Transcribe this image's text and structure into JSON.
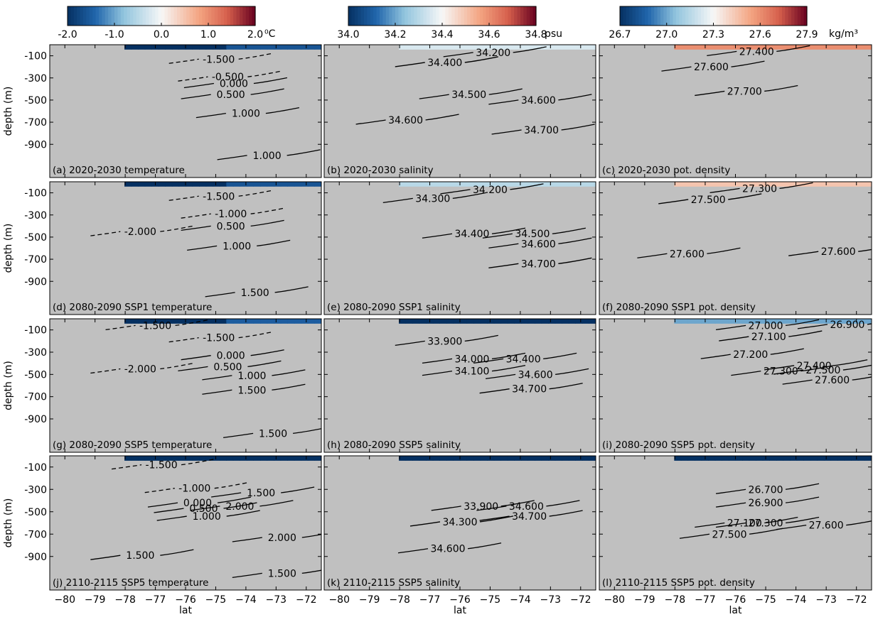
{
  "chart_data": {
    "type": "heatmap",
    "layout": {
      "rows": 4,
      "cols": 3
    },
    "x_axis": {
      "label": "lat",
      "range": [
        -80.5,
        -71.5
      ],
      "ticks": [
        -80,
        -79,
        -78,
        -77,
        -76,
        -75,
        -74,
        -73,
        -72
      ]
    },
    "y_axis": {
      "label": "depth (m)",
      "range": [
        -1200,
        0
      ],
      "ticks": [
        -100,
        -300,
        -500,
        -700,
        -900
      ]
    },
    "colorbars": [
      {
        "variable": "temperature",
        "unit": "⁰C",
        "range": [
          -2.0,
          2.0
        ],
        "ticks": [
          "-2.0",
          "-1.0",
          "0.0",
          "1.0",
          "2.0"
        ]
      },
      {
        "variable": "salinity",
        "unit": "psu",
        "range": [
          34.0,
          34.8
        ],
        "ticks": [
          "34.0",
          "34.2",
          "34.4",
          "34.6",
          "34.8"
        ]
      },
      {
        "variable": "pot. density",
        "unit": "kg/m³",
        "range": [
          26.7,
          27.9
        ],
        "ticks": [
          "26.7",
          "27.0",
          "27.3",
          "27.6",
          "27.9"
        ]
      }
    ],
    "panels": [
      {
        "label": "(a) 2020-2030   temperature",
        "var": 0,
        "shelf": -2.0,
        "off": 0.8,
        "thr": -540,
        "cmv": -1.6,
        "cmw": 80,
        "contours": [
          {
            "v": "-1.500",
            "lat": -74.9,
            "d": -130
          },
          {
            "v": "-0.500",
            "lat": -74.6,
            "d": -290
          },
          {
            "v": "0.000",
            "lat": -74.4,
            "d": -350
          },
          {
            "v": "0.500",
            "lat": -74.5,
            "d": -450
          },
          {
            "v": "1.000",
            "lat": -74.0,
            "d": -620
          },
          {
            "v": "1.000",
            "lat": -73.3,
            "d": -1000
          }
        ]
      },
      {
        "label": "(b) 2020-2030   salinity",
        "var": 1,
        "shelf": 34.62,
        "off": 34.7,
        "thr": -450,
        "cmv": 34.35,
        "cmw": 80,
        "contours": [
          {
            "v": "34.400",
            "lat": -76.5,
            "d": -160
          },
          {
            "v": "34.200",
            "lat": -74.9,
            "d": -70
          },
          {
            "v": "34.500",
            "lat": -75.7,
            "d": -450
          },
          {
            "v": "34.600",
            "lat": -77.8,
            "d": -680
          },
          {
            "v": "34.600",
            "lat": -73.4,
            "d": -500
          },
          {
            "v": "34.700",
            "lat": -73.3,
            "d": -770
          }
        ]
      },
      {
        "label": "(c) 2020-2030   pot. density",
        "var": 2,
        "shelf": 27.78,
        "off": 27.8,
        "thr": -300,
        "cmv": 27.6,
        "cmw": 60,
        "contours": [
          {
            "v": "27.600",
            "lat": -76.8,
            "d": -200
          },
          {
            "v": "27.400",
            "lat": -75.3,
            "d": -60
          },
          {
            "v": "27.700",
            "lat": -75.7,
            "d": -420
          }
        ]
      },
      {
        "label": "(d) 2080-2090 SSP1 temperature",
        "var": 0,
        "shelf": -2.0,
        "off": 1.4,
        "thr": -540,
        "cmv": -1.6,
        "cmw": 80,
        "contours": [
          {
            "v": "-2.000",
            "lat": -77.5,
            "d": -450
          },
          {
            "v": "-1.500",
            "lat": -74.9,
            "d": -130
          },
          {
            "v": "-1.000",
            "lat": -74.5,
            "d": -290
          },
          {
            "v": "0.500",
            "lat": -74.5,
            "d": -400
          },
          {
            "v": "1.000",
            "lat": -74.3,
            "d": -580
          },
          {
            "v": "1.500",
            "lat": -73.7,
            "d": -1000
          }
        ]
      },
      {
        "label": "(e) 2080-2090 SSP1 salinity",
        "var": 1,
        "shelf": 34.42,
        "off": 34.7,
        "thr": -420,
        "cmv": 34.3,
        "cmw": 70,
        "contours": [
          {
            "v": "34.300",
            "lat": -76.9,
            "d": -150
          },
          {
            "v": "34.200",
            "lat": -75.0,
            "d": -70
          },
          {
            "v": "34.400",
            "lat": -75.6,
            "d": -470
          },
          {
            "v": "34.500",
            "lat": -73.6,
            "d": -470
          },
          {
            "v": "34.600",
            "lat": -73.4,
            "d": -560
          },
          {
            "v": "34.700",
            "lat": -73.4,
            "d": -740
          }
        ]
      },
      {
        "label": "(f) 2080-2090 SSP1 pot. density",
        "var": 2,
        "shelf": 27.6,
        "off": 27.65,
        "thr": -350,
        "cmv": 27.45,
        "cmw": 60,
        "contours": [
          {
            "v": "27.500",
            "lat": -76.9,
            "d": -160
          },
          {
            "v": "27.300",
            "lat": -75.2,
            "d": -60
          },
          {
            "v": "27.600",
            "lat": -77.6,
            "d": -650
          },
          {
            "v": "27.600",
            "lat": -72.6,
            "d": -630
          }
        ]
      },
      {
        "label": "(g) 2080-2090 SSP5 temperature",
        "var": 0,
        "shelf": -2.0,
        "off": 2.0,
        "thr": -500,
        "cmv": -1.5,
        "cmw": 80,
        "contours": [
          {
            "v": "-1.500",
            "lat": -77.0,
            "d": -60
          },
          {
            "v": "-2.000",
            "lat": -77.5,
            "d": -450
          },
          {
            "v": "-1.500",
            "lat": -74.9,
            "d": -170
          },
          {
            "v": "0.000",
            "lat": -74.5,
            "d": -330
          },
          {
            "v": "0.500",
            "lat": -74.6,
            "d": -430
          },
          {
            "v": "1.000",
            "lat": -73.8,
            "d": -510
          },
          {
            "v": "1.500",
            "lat": -73.8,
            "d": -640
          },
          {
            "v": "1.500",
            "lat": -73.1,
            "d": -1030
          }
        ]
      },
      {
        "label": "(h) 2080-2090 SSP5 salinity",
        "var": 1,
        "shelf": 34.07,
        "off": 34.8,
        "thr": -380,
        "cmv": 34.0,
        "cmw": 60,
        "contours": [
          {
            "v": "33.900",
            "lat": -76.5,
            "d": -200
          },
          {
            "v": "34.000",
            "lat": -75.6,
            "d": -360
          },
          {
            "v": "34.100",
            "lat": -75.6,
            "d": -470
          },
          {
            "v": "34.400",
            "lat": -73.9,
            "d": -360
          },
          {
            "v": "34.600",
            "lat": -73.5,
            "d": -500
          },
          {
            "v": "34.700",
            "lat": -73.7,
            "d": -630
          }
        ]
      },
      {
        "label": "(i) 2080-2090 SSP5 pot. density",
        "var": 2,
        "shelf": 27.35,
        "off": 27.7,
        "thr": -400,
        "cmv": 27.0,
        "cmw": 60,
        "contours": [
          {
            "v": "27.000",
            "lat": -75.0,
            "d": -60
          },
          {
            "v": "26.900",
            "lat": -72.3,
            "d": -50
          },
          {
            "v": "27.100",
            "lat": -74.9,
            "d": -160
          },
          {
            "v": "27.200",
            "lat": -75.5,
            "d": -320
          },
          {
            "v": "27.400",
            "lat": -73.4,
            "d": -420
          },
          {
            "v": "27.300",
            "lat": -74.5,
            "d": -470
          },
          {
            "v": "27.500",
            "lat": -73.1,
            "d": -460
          },
          {
            "v": "27.600",
            "lat": -72.8,
            "d": -550
          }
        ]
      },
      {
        "label": "(j) 2110-2115 SSP5 temperature",
        "var": 0,
        "shelf": 1.4,
        "off": 2.6,
        "thr": -700,
        "cmv": -2.0,
        "cmw": 120,
        "contours": [
          {
            "v": "-1.500",
            "lat": -76.8,
            "d": -80
          },
          {
            "v": "-1.000",
            "lat": -75.7,
            "d": -290
          },
          {
            "v": "0.000",
            "lat": -75.6,
            "d": -420
          },
          {
            "v": "0.500",
            "lat": -75.4,
            "d": -470
          },
          {
            "v": "1.000",
            "lat": -75.3,
            "d": -540
          },
          {
            "v": "1.500",
            "lat": -73.5,
            "d": -330
          },
          {
            "v": "2.000",
            "lat": -74.2,
            "d": -450
          },
          {
            "v": "2.000",
            "lat": -72.8,
            "d": -730
          },
          {
            "v": "1.500",
            "lat": -77.5,
            "d": -890
          },
          {
            "v": "1.500",
            "lat": -72.8,
            "d": -1050
          }
        ]
      },
      {
        "label": "(k) 2110-2115 SSP5 salinity",
        "var": 1,
        "shelf": 34.6,
        "off": 34.9,
        "thr": -570,
        "cmv": 33.9,
        "cmw": 110,
        "contours": [
          {
            "v": "33.900",
            "lat": -75.3,
            "d": -450
          },
          {
            "v": "34.600",
            "lat": -73.8,
            "d": -450
          },
          {
            "v": "34.700",
            "lat": -73.7,
            "d": -540
          },
          {
            "v": "34.300",
            "lat": -76.0,
            "d": -590
          },
          {
            "v": "34.600",
            "lat": -76.4,
            "d": -830
          }
        ]
      },
      {
        "label": "(l) 2110-2115 SSP5 pot. density",
        "var": 2,
        "shelf": 27.6,
        "off": 27.7,
        "thr": -600,
        "cmv": 26.7,
        "cmw": 110,
        "contours": [
          {
            "v": "26.700",
            "lat": -75.0,
            "d": -300
          },
          {
            "v": "26.900",
            "lat": -75.0,
            "d": -420
          },
          {
            "v": "27.100",
            "lat": -75.7,
            "d": -600
          },
          {
            "v": "27.300",
            "lat": -75.0,
            "d": -600
          },
          {
            "v": "27.500",
            "lat": -76.2,
            "d": -700
          },
          {
            "v": "27.600",
            "lat": -73.0,
            "d": -620
          }
        ]
      }
    ]
  }
}
